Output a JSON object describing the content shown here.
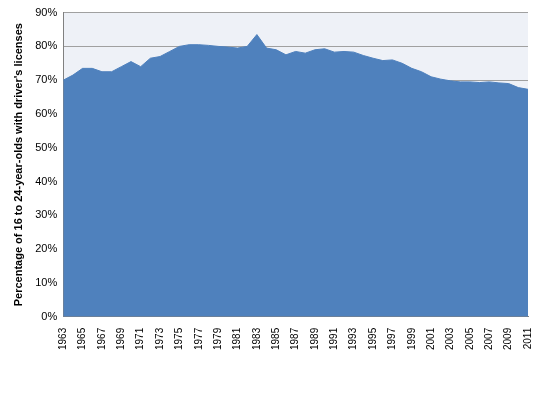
{
  "chart_data": {
    "type": "area",
    "y_label": "Percentage of 16 to 24-year-olds with driver's licenses",
    "categories": [
      "1963",
      null,
      "1965",
      null,
      "1967",
      null,
      "1969",
      null,
      "1971",
      null,
      "1973",
      null,
      "1975",
      null,
      "1977",
      null,
      "1979",
      null,
      "1981",
      null,
      "1983",
      null,
      "1985",
      null,
      "1987",
      null,
      "1989",
      null,
      "1991",
      null,
      "1993",
      null,
      "1995",
      null,
      "1997",
      null,
      "1999",
      null,
      "2001",
      null,
      "2003",
      null,
      "2005",
      null,
      "2007",
      null,
      "2009",
      null,
      "2011"
    ],
    "values": [
      70,
      71.5,
      73.5,
      73.5,
      72.5,
      72.5,
      74,
      75.5,
      74,
      76.5,
      77,
      78.5,
      80,
      80.5,
      80.5,
      80.3,
      80,
      79.8,
      79.5,
      80,
      83.5,
      79.5,
      79,
      77.5,
      78.5,
      78,
      79,
      79.3,
      78.3,
      78.5,
      78.3,
      77.3,
      76.5,
      75.8,
      76,
      75,
      73.5,
      72.5,
      71,
      70.3,
      69.8,
      69.5,
      69.5,
      69.3,
      69.5,
      69.2,
      69,
      67.8,
      67.3
    ],
    "color": "#4f81bd",
    "ylim": [
      0,
      90
    ],
    "yticks": [
      {
        "value": 0,
        "label": "0%"
      },
      {
        "value": 10,
        "label": "10%"
      },
      {
        "value": 20,
        "label": "20%"
      },
      {
        "value": 30,
        "label": "30%"
      },
      {
        "value": 40,
        "label": "40%"
      },
      {
        "value": 50,
        "label": "50%"
      },
      {
        "value": 60,
        "label": "60%"
      },
      {
        "value": 70,
        "label": "70%"
      },
      {
        "value": 80,
        "label": "80%"
      },
      {
        "value": 90,
        "label": "90%"
      }
    ],
    "grid": true
  }
}
